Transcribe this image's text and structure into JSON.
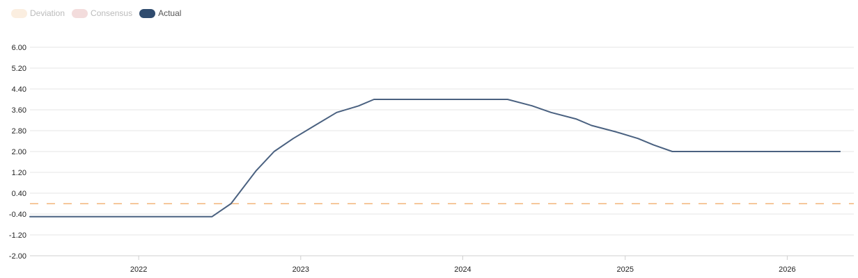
{
  "legend": {
    "items": [
      {
        "label": "Deviation",
        "color": "#fbeee0",
        "text_color": "#bbbbbb",
        "state": "hidden"
      },
      {
        "label": "Consensus",
        "color": "#f3dcdc",
        "text_color": "#bbbbbb",
        "state": "hidden"
      },
      {
        "label": "Actual",
        "color": "#2f4b6e",
        "text_color": "#555555",
        "state": "visible"
      }
    ]
  },
  "colors": {
    "actual_line": "#4a6180",
    "zero_reference": "#f5c79b",
    "grid": "#e6e6e6"
  },
  "chart_data": {
    "type": "line",
    "title": "",
    "xlabel": "",
    "ylabel": "",
    "ylim": [
      -2.0,
      6.0
    ],
    "y_ticks": [
      "6.00",
      "5.20",
      "4.40",
      "3.60",
      "2.80",
      "2.00",
      "1.20",
      "0.40",
      "-0.40",
      "-1.20",
      "-2.00"
    ],
    "x_ticks": [
      "2022",
      "2023",
      "2024",
      "2025",
      "2026"
    ],
    "xlim": [
      "2021-05-01",
      "2026-05-31"
    ],
    "grid": true,
    "legend_position": "top-left",
    "reference_lines": [
      {
        "style": "dashed",
        "y": 0
      }
    ],
    "series": [
      {
        "name": "Actual",
        "x": [
          "2021-05-01",
          "2022-06-15",
          "2022-07-28",
          "2022-09-22",
          "2022-11-02",
          "2022-12-15",
          "2023-02-02",
          "2023-03-23",
          "2023-05-11",
          "2023-06-15",
          "2023-09-14",
          "2024-04-11",
          "2024-06-06",
          "2024-07-18",
          "2024-09-12",
          "2024-10-17",
          "2024-12-12",
          "2025-01-30",
          "2025-03-06",
          "2025-04-17",
          "2025-06-05",
          "2025-07-24",
          "2026-04-30"
        ],
        "y": [
          -0.5,
          -0.5,
          0.0,
          1.25,
          2.0,
          2.5,
          3.0,
          3.5,
          3.75,
          4.0,
          4.0,
          4.0,
          3.75,
          3.5,
          3.25,
          3.0,
          2.75,
          2.5,
          2.25,
          2.0,
          2.0,
          2.0,
          2.0
        ]
      }
    ]
  }
}
